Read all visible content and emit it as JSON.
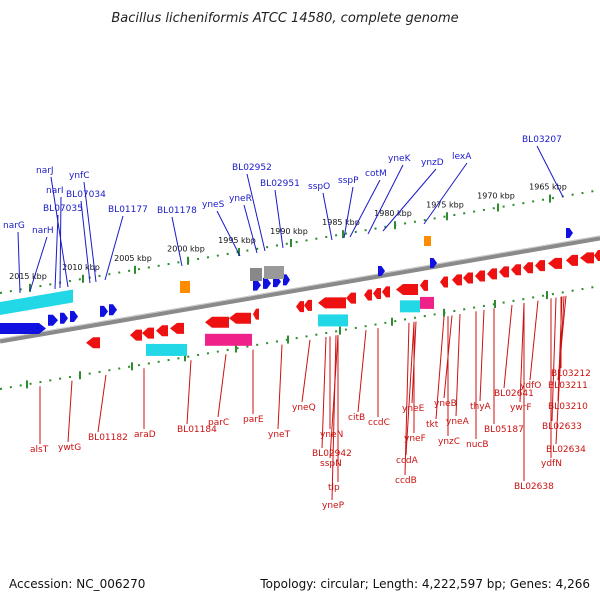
{
  "title": "Bacillus licheniformis ATCC 14580, complete genome",
  "footer": {
    "accession": "Accession: NC_006270",
    "topology": "Topology: circular; Length: 4,222,597 bp; Genes: 4,266"
  },
  "colors": {
    "forward_label": "#1a1ac8",
    "reverse_label": "#cc1111",
    "backbone": "#777777",
    "tick_track": "#2e8b2e",
    "forward_arrow": "#1010e0",
    "reverse_arrow": "#ee1111",
    "feature_cyan": "#22d8e6",
    "feature_magenta": "#ee2288",
    "feature_orange": "#ff8c00"
  },
  "scale_ticks": [
    "2015 kbp",
    "2010 kbp",
    "2005 kbp",
    "2000 kbp",
    "1995 kbp",
    "1990 kbp",
    "1985 kbp",
    "1980 kbp",
    "1975 kbp",
    "1970 kbp",
    "1965 kbp"
  ],
  "forward_genes": [
    "narG",
    "narH",
    "BL07035",
    "narI",
    "narJ",
    "BL07034",
    "ynfC",
    "BL01177",
    "BL01178",
    "yneS",
    "yneR",
    "BL02952",
    "BL02951",
    "sspO",
    "sspP",
    "cotM",
    "yneK",
    "ynzD",
    "lexA",
    "BL03207"
  ],
  "reverse_genes": [
    "alsT",
    "ywtG",
    "BL01182",
    "araD",
    "BL01184",
    "parC",
    "parE",
    "yneT",
    "yneQ",
    "yneN",
    "BL02942",
    "sspN",
    "tlp",
    "yneP",
    "citB",
    "ccdC",
    "ccdB",
    "ccdA",
    "yneF",
    "yneE",
    "tkt",
    "ynzC",
    "yneA",
    "yneB",
    "nucB",
    "thyA",
    "BL02641",
    "BL05187",
    "ywrF",
    "ydfO",
    "BL02638",
    "BL02633",
    "BL02634",
    "ydfN",
    "BL03210",
    "BL03211",
    "BL03212"
  ]
}
